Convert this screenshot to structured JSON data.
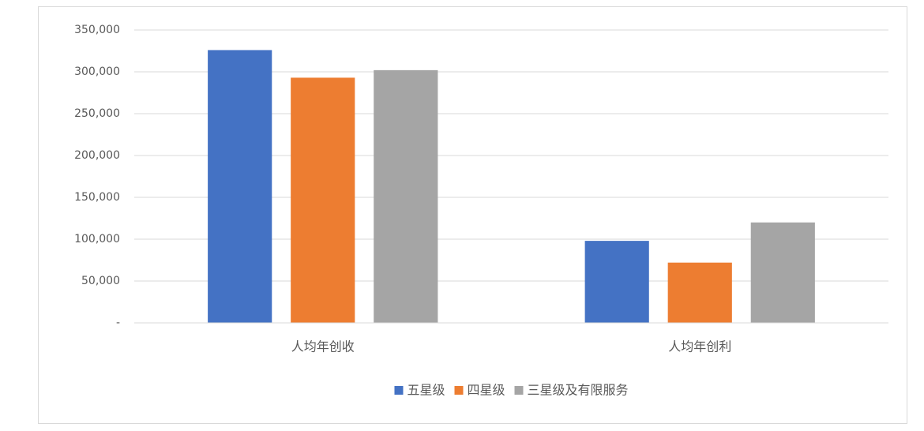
{
  "chart_data": {
    "type": "bar",
    "categories": [
      "人均年创收",
      "人均年创利"
    ],
    "series": [
      {
        "name": "五星级",
        "color": "#4472c4",
        "values": [
          326000,
          98000
        ]
      },
      {
        "name": "四星级",
        "color": "#ed7d31",
        "values": [
          293000,
          72000
        ]
      },
      {
        "name": "三星级及有限服务",
        "color": "#a5a5a5",
        "values": [
          302000,
          120000
        ]
      }
    ],
    "ylim": [
      0,
      350000
    ],
    "yticks": [
      {
        "value": 0,
        "label": "-"
      },
      {
        "value": 50000,
        "label": "50,000"
      },
      {
        "value": 100000,
        "label": "100,000"
      },
      {
        "value": 150000,
        "label": "150,000"
      },
      {
        "value": 200000,
        "label": "200,000"
      },
      {
        "value": 250000,
        "label": "250,000"
      },
      {
        "value": 300000,
        "label": "300,000"
      },
      {
        "value": 350000,
        "label": "350,000"
      }
    ],
    "grid": true,
    "legend": "bottom"
  }
}
